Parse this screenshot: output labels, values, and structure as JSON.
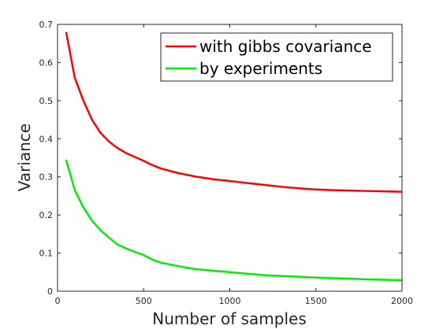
{
  "chart_data": {
    "type": "line",
    "title": "",
    "xlabel": "Number of samples",
    "ylabel": "Variance",
    "xlim": [
      0,
      2000
    ],
    "ylim": [
      0,
      0.7
    ],
    "xticks": [
      0,
      500,
      1000,
      1500,
      2000
    ],
    "yticks": [
      0,
      0.1,
      0.2,
      0.3,
      0.4,
      0.5,
      0.6,
      0.7
    ],
    "grid": false,
    "legend_position": "top-right",
    "x": [
      50,
      100,
      150,
      200,
      250,
      300,
      350,
      400,
      450,
      500,
      550,
      600,
      700,
      800,
      900,
      1000,
      1100,
      1200,
      1300,
      1400,
      1500,
      1600,
      1700,
      1800,
      1900,
      2000
    ],
    "series": [
      {
        "name": "with gibbs covariance",
        "color": "#ff0000",
        "values": [
          0.68,
          0.56,
          0.5,
          0.45,
          0.415,
          0.392,
          0.375,
          0.362,
          0.352,
          0.342,
          0.331,
          0.322,
          0.31,
          0.301,
          0.294,
          0.289,
          0.284,
          0.279,
          0.274,
          0.27,
          0.267,
          0.265,
          0.264,
          0.263,
          0.262,
          0.261
        ]
      },
      {
        "name": "by experiments",
        "color": "#00ee00",
        "values": [
          0.345,
          0.265,
          0.22,
          0.185,
          0.16,
          0.14,
          0.122,
          0.112,
          0.103,
          0.095,
          0.083,
          0.075,
          0.066,
          0.058,
          0.054,
          0.05,
          0.046,
          0.042,
          0.04,
          0.038,
          0.036,
          0.034,
          0.033,
          0.031,
          0.03,
          0.029
        ]
      }
    ]
  }
}
